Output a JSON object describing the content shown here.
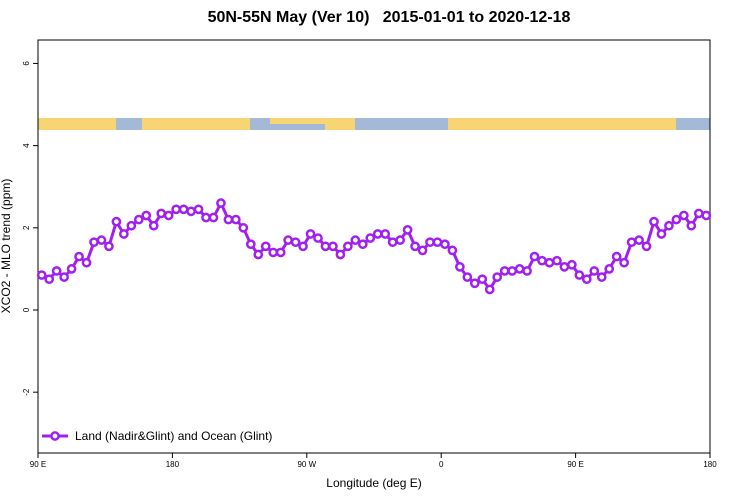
{
  "chart_data": {
    "type": "line",
    "title": "50N-55N May (Ver 10)   2015-01-01 to 2020-12-18",
    "xlabel": "Longitude (deg E)",
    "ylabel": "XCO2 - MLO trend (ppm)",
    "x": [
      92.5,
      97.5,
      102.5,
      107.5,
      112.5,
      117.5,
      122.5,
      127.5,
      132.5,
      137.5,
      142.5,
      147.5,
      152.5,
      157.5,
      162.5,
      167.5,
      172.5,
      177.5,
      182.5,
      187.5,
      192.5,
      197.5,
      202.5,
      207.5,
      212.5,
      217.5,
      222.5,
      227.5,
      232.5,
      237.5,
      242.5,
      247.5,
      252.5,
      257.5,
      262.5,
      267.5,
      272.5,
      277.5,
      282.5,
      287.5,
      292.5,
      297.5,
      302.5,
      307.5,
      312.5,
      317.5,
      322.5,
      327.5,
      332.5,
      337.5,
      342.5,
      347.5,
      352.5,
      357.5,
      362.5,
      367.5,
      372.5,
      377.5,
      382.5,
      387.5,
      392.5,
      397.5,
      402.5,
      407.5,
      412.5,
      417.5,
      422.5,
      427.5,
      432.5,
      437.5,
      442.5,
      447.5,
      452.5,
      457.5,
      462.5,
      467.5,
      472.5,
      477.5,
      482.5,
      487.5,
      492.5,
      497.5,
      502.5,
      507.5,
      512.5,
      517.5,
      522.5,
      527.5,
      532.5,
      537.5
    ],
    "series": [
      {
        "name": "Land (Nadir&Glint) and Ocean (Glint)",
        "color": "#a020f0",
        "values": [
          0.85,
          0.75,
          0.95,
          0.8,
          1.0,
          1.3,
          1.15,
          1.65,
          1.7,
          1.55,
          2.15,
          1.85,
          2.05,
          2.2,
          2.3,
          2.05,
          2.35,
          2.3,
          2.45,
          2.45,
          2.4,
          2.45,
          2.25,
          2.25,
          2.6,
          2.2,
          2.2,
          2.0,
          1.6,
          1.35,
          1.55,
          1.4,
          1.4,
          1.7,
          1.65,
          1.55,
          1.85,
          1.75,
          1.55,
          1.55,
          1.35,
          1.55,
          1.7,
          1.6,
          1.75,
          1.85,
          1.85,
          1.65,
          1.7,
          1.95,
          1.55,
          1.45,
          1.65,
          1.65,
          1.6,
          1.45,
          1.05,
          0.8,
          0.65,
          0.75,
          0.5,
          0.8,
          0.95,
          0.95,
          1.0,
          0.95,
          1.3,
          1.2,
          1.15,
          1.2,
          1.05,
          1.1,
          0.85,
          0.75,
          0.95,
          0.8,
          1.0,
          1.3,
          1.15,
          1.65,
          1.7,
          1.55,
          2.15,
          1.85,
          2.05,
          2.2,
          2.3,
          2.05,
          2.35,
          2.3
        ]
      }
    ],
    "xlim": [
      90,
      540
    ],
    "xticks": [
      {
        "value": 90,
        "label": "90 E"
      },
      {
        "value": 180,
        "label": "180"
      },
      {
        "value": 270,
        "label": "90 W"
      },
      {
        "value": 360,
        "label": "0"
      },
      {
        "value": 450,
        "label": "90 E"
      },
      {
        "value": 540,
        "label": "180"
      }
    ],
    "ylim": [
      -3.48,
      6.57
    ],
    "yticks": [
      -2,
      0,
      2,
      4,
      6
    ],
    "grid": false,
    "legend": "bottom-left"
  }
}
